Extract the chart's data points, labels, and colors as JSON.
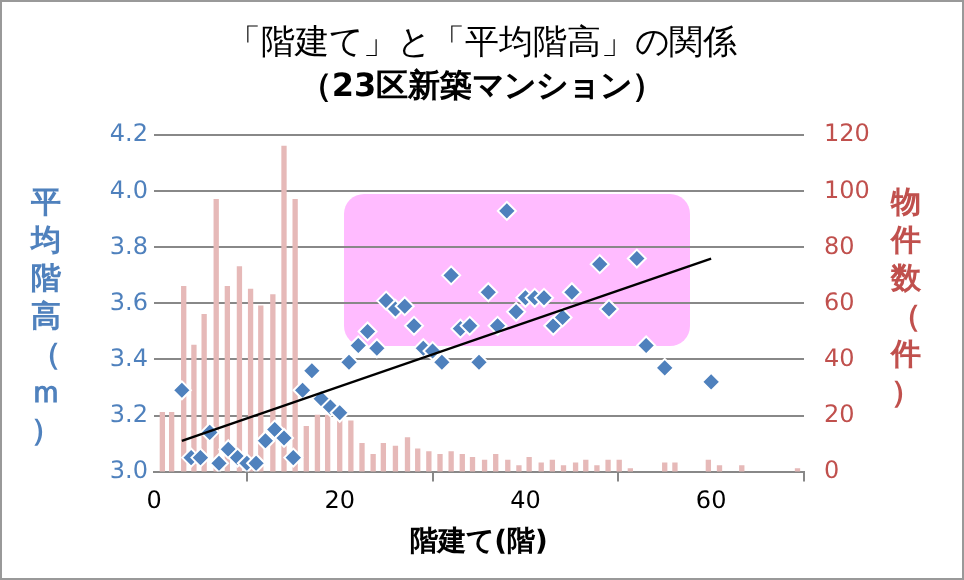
{
  "chart_data": {
    "type": "scatter",
    "title": "「階建て」と「平均階高」の関係",
    "subtitle": "（23区新築マンション）",
    "xlabel": "階建て(階)",
    "ylabel": "平均階高（ｍ）",
    "y2label": "物件数（件）",
    "xlim": [
      0,
      70
    ],
    "xticks": [
      0,
      20,
      40,
      60
    ],
    "ylim": [
      3.0,
      4.2
    ],
    "yticks": [
      {
        "value": 3,
        "label": "3.0"
      },
      {
        "value": 3.2,
        "label": "3.2"
      },
      {
        "value": 3.4,
        "label": "3.4"
      },
      {
        "value": 3.6,
        "label": "3.6"
      },
      {
        "value": 3.8,
        "label": "3.8"
      },
      {
        "value": 4,
        "label": "4.0"
      },
      {
        "value": 4.2,
        "label": "4.2"
      }
    ],
    "y2lim": [
      0,
      120
    ],
    "y2ticks": [
      0,
      20,
      40,
      60,
      80,
      100,
      120
    ],
    "grid": "y",
    "legend": false,
    "marker": "diamond",
    "series": [
      {
        "type": "bar",
        "axis": "y2",
        "color": "#e6b9b8",
        "x": [
          0.9,
          1.9,
          3.2,
          4.3,
          5.4,
          6.7,
          7.9,
          9.2,
          10.4,
          11.5,
          12.8,
          14,
          15.2,
          16.4,
          17.6,
          18.7,
          20,
          21.2,
          22.4,
          23.6,
          24.7,
          26,
          27.3,
          28.4,
          29.6,
          30.8,
          32,
          33.2,
          34.3,
          35.6,
          36.8,
          38.1,
          39.3,
          40.4,
          41.7,
          42.9,
          44.1,
          45.4,
          46.5,
          47.7,
          48.9,
          50.1,
          51.3,
          55,
          56.1,
          59.7,
          60.9,
          63.3,
          69.3
        ],
        "values": [
          21,
          21,
          66,
          45,
          56,
          97,
          66,
          73,
          65,
          59,
          63,
          116,
          97,
          16,
          20,
          20,
          20,
          18,
          10,
          6,
          10,
          9,
          12,
          8,
          7,
          6,
          7,
          6,
          5,
          4,
          6,
          4,
          2,
          5,
          3,
          4,
          2,
          3,
          4,
          2,
          4,
          4,
          1,
          3,
          3,
          4,
          2,
          2,
          1
        ]
      },
      {
        "color": "#4f81bd",
        "x": [
          3,
          4,
          5,
          6,
          7,
          8,
          9,
          10,
          11,
          12,
          13,
          14,
          15,
          16,
          17,
          18,
          19,
          20,
          21,
          22,
          23,
          24,
          25,
          26,
          27,
          28,
          29,
          30,
          31,
          32,
          33,
          34,
          35,
          36,
          37,
          38,
          39,
          40,
          41,
          42,
          43,
          44,
          45,
          48,
          49,
          52,
          53,
          55,
          60
        ],
        "values": [
          3.29,
          3.05,
          3.05,
          3.14,
          3.03,
          3.08,
          3.05,
          3.03,
          3.03,
          3.11,
          3.15,
          3.12,
          3.05,
          3.29,
          3.36,
          3.26,
          3.23,
          3.21,
          3.39,
          3.45,
          3.5,
          3.44,
          3.61,
          3.58,
          3.59,
          3.52,
          3.44,
          3.43,
          3.39,
          3.7,
          3.51,
          3.52,
          3.39,
          3.64,
          3.52,
          3.93,
          3.57,
          3.62,
          3.62,
          3.62,
          3.52,
          3.55,
          3.64,
          3.74,
          3.58,
          3.76,
          3.45,
          3.37,
          3.32
        ]
      },
      {
        "type": "line",
        "marker": "none",
        "color": "#000000",
        "x": [
          3,
          60
        ],
        "values": [
          3.11,
          3.76
        ]
      }
    ]
  }
}
